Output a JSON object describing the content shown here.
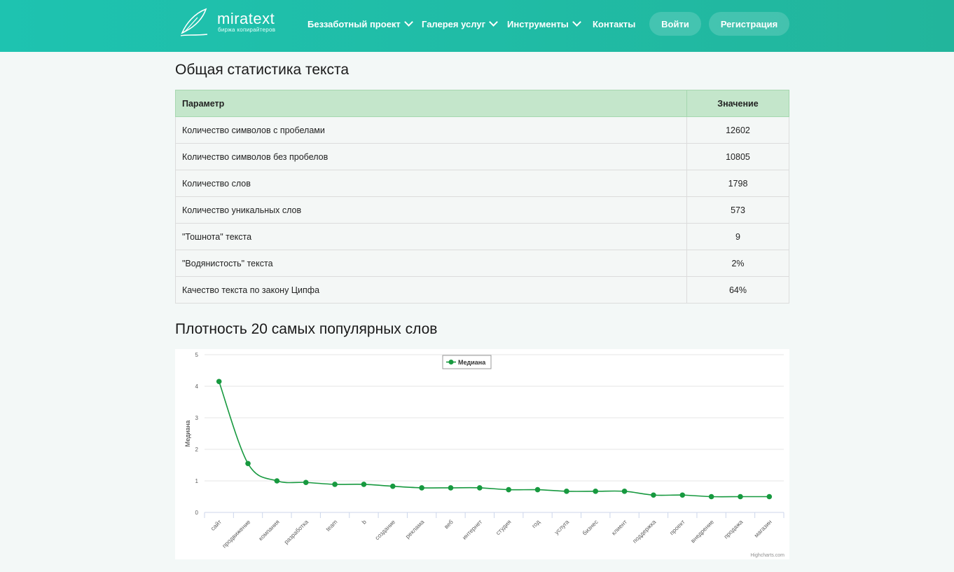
{
  "header": {
    "logo_name": "miratext",
    "logo_sub": "биржа копирайтеров",
    "nav": [
      {
        "label": "Беззаботный проект",
        "has_dropdown": true
      },
      {
        "label": "Галерея услуг",
        "has_dropdown": true
      },
      {
        "label": "Инструменты",
        "has_dropdown": true
      },
      {
        "label": "Контакты",
        "has_dropdown": false
      }
    ],
    "login_label": "Войти",
    "register_label": "Регистрация"
  },
  "stats": {
    "title": "Общая статистика текста",
    "col_param": "Параметр",
    "col_value": "Значение",
    "rows": [
      {
        "param": "Количество символов с пробелами",
        "value": "12602"
      },
      {
        "param": "Количество символов без пробелов",
        "value": "10805"
      },
      {
        "param": "Количество слов",
        "value": "1798"
      },
      {
        "param": "Количество уникальных слов",
        "value": "573"
      },
      {
        "param": "\"Тошнота\" текста",
        "value": "9"
      },
      {
        "param": "\"Водянистость\" текста",
        "value": "2%"
      },
      {
        "param": "Качество текста по закону Ципфа",
        "value": "64%"
      }
    ]
  },
  "density": {
    "title": "Плотность 20 самых популярных слов"
  },
  "colors": {
    "header": "#1ec3b0",
    "table_header": "#c4e6cb",
    "series": "#17993f"
  },
  "chart_data": {
    "type": "line",
    "ylabel": "Медиана",
    "xlabel": "",
    "ylim": [
      0,
      5
    ],
    "yticks": [
      0,
      1,
      2,
      3,
      4,
      5
    ],
    "legend_position": "top-center",
    "grid": true,
    "credits": "Highcharts.com",
    "categories": [
      "сайт",
      "продвижение",
      "компания",
      "разработка",
      "team",
      "b",
      "создание",
      "реклама",
      "веб",
      "интернет",
      "студия",
      "год",
      "услуга",
      "бизнес",
      "клиент",
      "поддержка",
      "проект",
      "внедрение",
      "продажа",
      "магазин"
    ],
    "series": [
      {
        "name": "Медиана",
        "values": [
          4.15,
          1.55,
          1.0,
          0.95,
          0.89,
          0.89,
          0.83,
          0.78,
          0.78,
          0.78,
          0.72,
          0.72,
          0.67,
          0.67,
          0.67,
          0.55,
          0.55,
          0.5,
          0.5,
          0.5
        ]
      }
    ]
  }
}
